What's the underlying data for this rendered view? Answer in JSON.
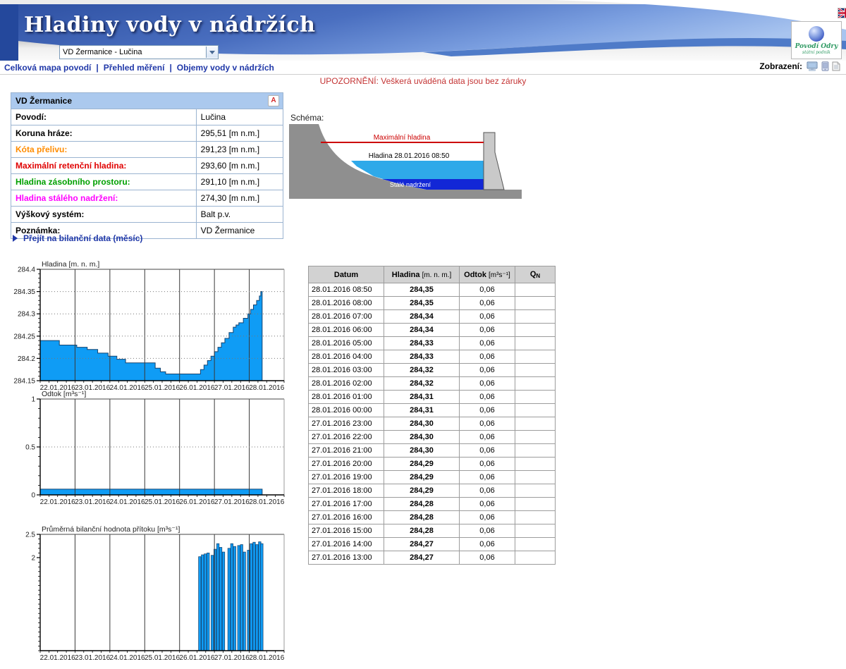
{
  "header": {
    "title": "Hladiny vody v nádržích",
    "station_select_value": "VD Žermanice - Lučina",
    "logo": {
      "line1": "Povodí Odry",
      "line2": "státní podnik"
    },
    "flags": [
      "czech-flag",
      "slovak-flag",
      "english-flag"
    ]
  },
  "nav": {
    "links": [
      "Celková mapa povodí",
      "Přehled měření",
      "Objemy vody v nádržích"
    ],
    "separator": "|",
    "display_label": "Zobrazení:",
    "display_icons": [
      "desktop-view-icon",
      "mobile-view-icon",
      "text-view-icon"
    ]
  },
  "warning": "UPOZORNĚNÍ: Veškerá uváděná data jsou bez záruky",
  "info_table": {
    "title": "VD Žermanice",
    "rows": [
      {
        "label": "Povodí:",
        "value": "Lučina",
        "color": "#000000"
      },
      {
        "label": "Koruna hráze:",
        "value": "295,51 [m n.m.]",
        "color": "#000000"
      },
      {
        "label": "Kóta přelivu:",
        "value": "291,23 [m n.m.]",
        "color": "#ff8c00"
      },
      {
        "label": "Maximální retenční hladina:",
        "value": "293,60 [m n.m.]",
        "color": "#e00000"
      },
      {
        "label": "Hladina zásobního prostoru:",
        "value": "291,10 [m n.m.]",
        "color": "#00a000"
      },
      {
        "label": "Hladina stálého nadržení:",
        "value": "274,30 [m n.m.]",
        "color": "#ff00ff"
      },
      {
        "label": "Výškový systém:",
        "value": "Balt p.v.",
        "color": "#000000"
      },
      {
        "label": "Poznámka:",
        "value": "VD Žermanice",
        "color": "#000000"
      }
    ]
  },
  "schema": {
    "label": "Schéma:",
    "max_level_label": "Maximální hladina",
    "current_level_label": "Hladina 28.01.2016 08:50",
    "dead_storage_label": "Stálé nadržení"
  },
  "bilance_link": "Přejít na bilanční data (měsíc)",
  "chart_data": [
    {
      "type": "area",
      "title": "Hladina [m. n. m.]",
      "ylim": [
        284.15,
        284.4
      ],
      "yticks": [
        284.15,
        284.2,
        284.25,
        284.3,
        284.35,
        284.4
      ],
      "ytick_labels": [
        "284.15",
        "284.2",
        "284.25",
        "284.3",
        "284.35",
        "284.4"
      ],
      "grid_y": [
        284.2,
        284.25,
        284.3,
        284.35
      ],
      "minor_step": 0.01,
      "x_days": 7,
      "x_tick_labels": [
        "22.01.2016",
        "23.01.2016",
        "24.01.2016",
        "25.01.2016",
        "26.01.2016",
        "27.01.2016",
        "28.01.2016"
      ],
      "points": [
        [
          0,
          284.24
        ],
        [
          0.55,
          284.23
        ],
        [
          1.05,
          284.225
        ],
        [
          1.35,
          284.22
        ],
        [
          1.65,
          284.212
        ],
        [
          1.95,
          284.205
        ],
        [
          2.2,
          284.198
        ],
        [
          2.45,
          284.19
        ],
        [
          3.3,
          284.178
        ],
        [
          3.45,
          284.17
        ],
        [
          3.6,
          284.165
        ],
        [
          4.5,
          284.165
        ],
        [
          4.6,
          284.175
        ],
        [
          4.7,
          284.185
        ],
        [
          4.8,
          284.195
        ],
        [
          4.9,
          284.205
        ],
        [
          5.0,
          284.215
        ],
        [
          5.1,
          284.225
        ],
        [
          5.2,
          284.235
        ],
        [
          5.3,
          284.245
        ],
        [
          5.42,
          284.258
        ],
        [
          5.54,
          284.27
        ],
        [
          5.62,
          284.275
        ],
        [
          5.7,
          284.28
        ],
        [
          5.83,
          284.29
        ],
        [
          5.96,
          284.3
        ],
        [
          6.04,
          284.31
        ],
        [
          6.12,
          284.32
        ],
        [
          6.21,
          284.33
        ],
        [
          6.29,
          284.34
        ],
        [
          6.33,
          284.35
        ]
      ],
      "end_day": 6.37
    },
    {
      "type": "area",
      "title": "Odtok [m³s⁻¹]",
      "ylim": [
        0,
        1
      ],
      "yticks": [
        0,
        0.5,
        1
      ],
      "ytick_labels": [
        "0",
        "0.5",
        "1"
      ],
      "grid_y": [
        0.5
      ],
      "minor_step": 0.1,
      "x_days": 7,
      "x_tick_labels": [
        "22.01.2016",
        "23.01.2016",
        "24.01.2016",
        "25.01.2016",
        "26.01.2016",
        "27.01.2016",
        "28.01.2016"
      ],
      "points": [
        [
          0,
          0.06
        ]
      ],
      "end_day": 6.37
    },
    {
      "type": "bar",
      "title": "Průměrná bilanční hodnota přítoku  [m³s⁻¹]",
      "ylim": [
        0,
        2.5
      ],
      "yticks": [
        2,
        2.5
      ],
      "ytick_labels": [
        "2",
        "2.5"
      ],
      "grid_y": [],
      "minor_step": 0.1,
      "x_days": 7,
      "x_tick_labels": [
        "22.01.2016",
        "23.01.2016",
        "24.01.2016",
        "25.01.2016",
        "26.01.2016",
        "27.01.2016",
        "28.01.2016"
      ],
      "bar_width_days": 0.07,
      "bars": [
        [
          4.58,
          2.02
        ],
        [
          4.66,
          2.06
        ],
        [
          4.74,
          2.08
        ],
        [
          4.82,
          2.1
        ],
        [
          4.94,
          2.05
        ],
        [
          5.02,
          2.18
        ],
        [
          5.1,
          2.3
        ],
        [
          5.18,
          2.22
        ],
        [
          5.26,
          2.12
        ],
        [
          5.42,
          2.2
        ],
        [
          5.5,
          2.3
        ],
        [
          5.58,
          2.24
        ],
        [
          5.7,
          2.26
        ],
        [
          5.78,
          2.28
        ],
        [
          5.86,
          2.12
        ],
        [
          5.98,
          2.16
        ],
        [
          6.06,
          2.3
        ],
        [
          6.14,
          2.33
        ],
        [
          6.22,
          2.28
        ],
        [
          6.3,
          2.34
        ],
        [
          6.36,
          2.3
        ]
      ]
    }
  ],
  "data_table": {
    "columns": [
      {
        "label": "Datum",
        "unit": "",
        "unit_style": ""
      },
      {
        "label": "Hladina",
        "unit": "[m. n. m.]",
        "unit_style": "unit"
      },
      {
        "label": "Odtok",
        "unit": "[m³s⁻¹]",
        "unit_style": "unit"
      },
      {
        "label": "Q",
        "unit": "N",
        "unit_style": "sub"
      }
    ],
    "rows": [
      [
        "28.01.2016 08:50",
        "284,35",
        "0,06",
        ""
      ],
      [
        "28.01.2016 08:00",
        "284,35",
        "0,06",
        ""
      ],
      [
        "28.01.2016 07:00",
        "284,34",
        "0,06",
        ""
      ],
      [
        "28.01.2016 06:00",
        "284,34",
        "0,06",
        ""
      ],
      [
        "28.01.2016 05:00",
        "284,33",
        "0,06",
        ""
      ],
      [
        "28.01.2016 04:00",
        "284,33",
        "0,06",
        ""
      ],
      [
        "28.01.2016 03:00",
        "284,32",
        "0,06",
        ""
      ],
      [
        "28.01.2016 02:00",
        "284,32",
        "0,06",
        ""
      ],
      [
        "28.01.2016 01:00",
        "284,31",
        "0,06",
        ""
      ],
      [
        "28.01.2016 00:00",
        "284,31",
        "0,06",
        ""
      ],
      [
        "27.01.2016 23:00",
        "284,30",
        "0,06",
        ""
      ],
      [
        "27.01.2016 22:00",
        "284,30",
        "0,06",
        ""
      ],
      [
        "27.01.2016 21:00",
        "284,30",
        "0,06",
        ""
      ],
      [
        "27.01.2016 20:00",
        "284,29",
        "0,06",
        ""
      ],
      [
        "27.01.2016 19:00",
        "284,29",
        "0,06",
        ""
      ],
      [
        "27.01.2016 18:00",
        "284,29",
        "0,06",
        ""
      ],
      [
        "27.01.2016 17:00",
        "284,28",
        "0,06",
        ""
      ],
      [
        "27.01.2016 16:00",
        "284,28",
        "0,06",
        ""
      ],
      [
        "27.01.2016 15:00",
        "284,28",
        "0,06",
        ""
      ],
      [
        "27.01.2016 14:00",
        "284,27",
        "0,06",
        ""
      ],
      [
        "27.01.2016 13:00",
        "284,27",
        "0,06",
        ""
      ]
    ]
  },
  "colors": {
    "chart_fill": "#0f9cf5",
    "chart_outline": "#16436f",
    "axis": "#000000",
    "day_gridline": "#3a3a3a",
    "dotted_grid": "#777777",
    "nav_link": "#2038a8",
    "warning": "#c43434",
    "info_header_bg": "#abc9ee",
    "table_header_bg": "#d2d2d2",
    "schema_water": "#2fa9e9",
    "schema_dead_storage": "#1227d6",
    "schema_ground": "#8f8f8f",
    "schema_dam": "#c9c9c9",
    "schema_max_line": "#cc0000"
  }
}
